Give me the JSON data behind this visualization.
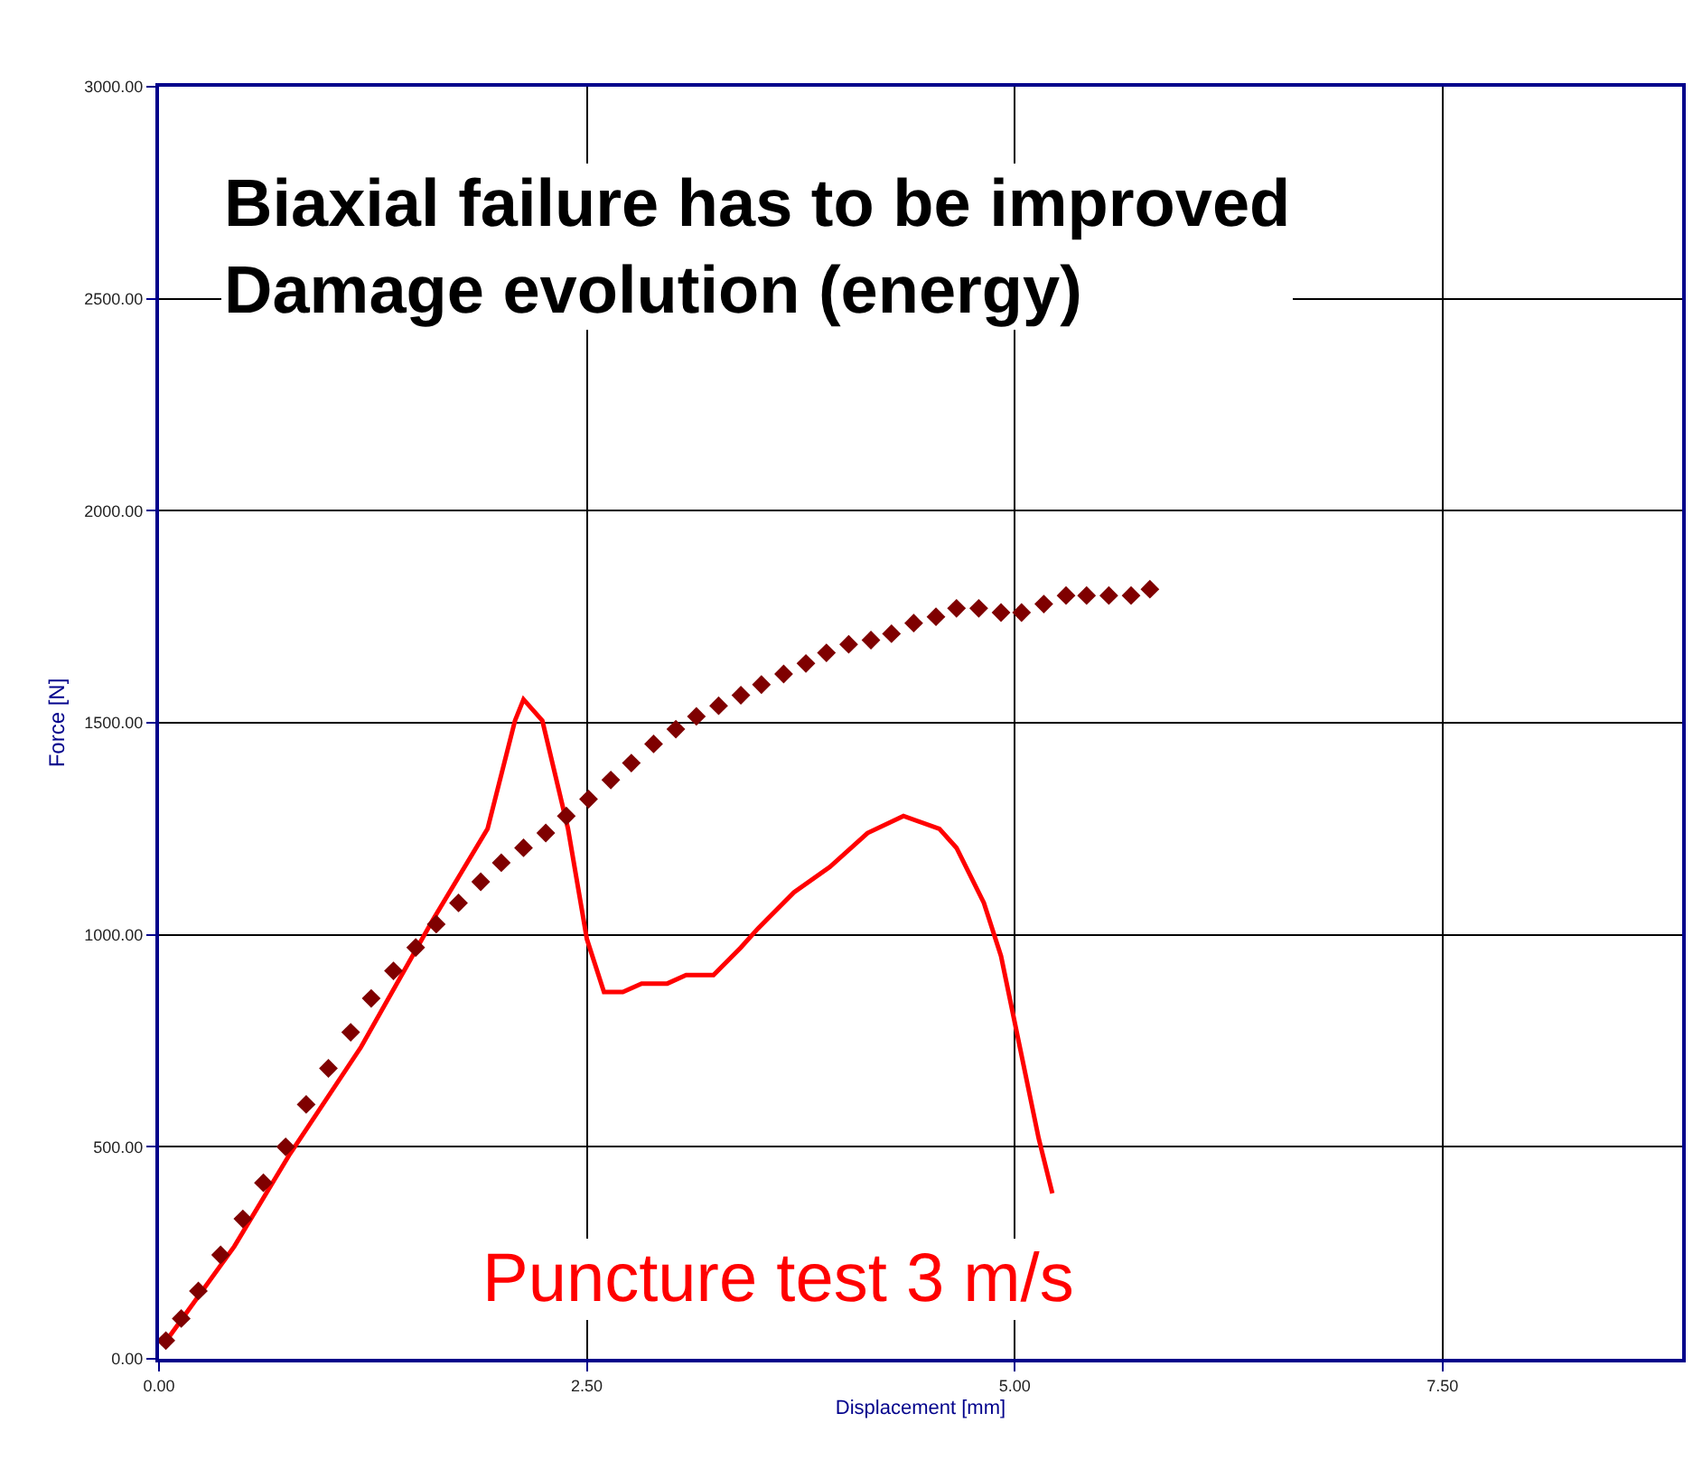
{
  "chart_data": {
    "type": "line",
    "xlabel": "Displacement [mm]",
    "ylabel": "Force [N]",
    "xlim": [
      0,
      8.9
    ],
    "ylim": [
      0,
      3000
    ],
    "xticks": [
      {
        "value": 0,
        "label": "0.00"
      },
      {
        "value": 2.5,
        "label": "2.50"
      },
      {
        "value": 5,
        "label": "5.00"
      },
      {
        "value": 7.5,
        "label": "7.50"
      }
    ],
    "yticks": [
      {
        "value": 0,
        "label": "0.00"
      },
      {
        "value": 500,
        "label": "500.00"
      },
      {
        "value": 1000,
        "label": "1000.00"
      },
      {
        "value": 1500,
        "label": "1500.00"
      },
      {
        "value": 2000,
        "label": "2000.00"
      },
      {
        "value": 2500,
        "label": "2500.00"
      },
      {
        "value": 3000,
        "label": "3000.00"
      }
    ],
    "grid": true,
    "annotations": [
      "Biaxial failure has to be improved\nDamage evolution (energy)",
      "Puncture test 3 m/s"
    ],
    "series": [
      {
        "marker": "none",
        "color": "#ff0000",
        "x": [
          0.02,
          0.44,
          0.76,
          1.18,
          1.6,
          1.92,
          2.08,
          2.13,
          2.24,
          2.39,
          2.5,
          2.6,
          2.71,
          2.82,
          2.97,
          3.08,
          3.24,
          3.4,
          3.5,
          3.71,
          3.92,
          4.14,
          4.35,
          4.56,
          4.66,
          4.82,
          4.92,
          5.03,
          5.14,
          5.22
        ],
        "values": [
          30,
          265,
          480,
          735,
          1035,
          1250,
          1505,
          1555,
          1505,
          1250,
          990,
          865,
          865,
          885,
          885,
          905,
          905,
          970,
          1015,
          1100,
          1160,
          1240,
          1280,
          1250,
          1205,
          1075,
          950,
          735,
          520,
          390
        ]
      },
      {
        "type": "scatter",
        "marker": "diamond",
        "color": "#7f0000",
        "x": [
          0.04,
          0.13,
          0.23,
          0.36,
          0.49,
          0.61,
          0.74,
          0.86,
          0.99,
          1.12,
          1.24,
          1.37,
          1.5,
          1.62,
          1.75,
          1.88,
          2.0,
          2.13,
          2.26,
          2.38,
          2.51,
          2.64,
          2.76,
          2.89,
          3.02,
          3.14,
          3.27,
          3.4,
          3.52,
          3.65,
          3.78,
          3.9,
          4.03,
          4.16,
          4.28,
          4.41,
          4.54,
          4.66,
          4.79,
          4.92,
          5.04,
          5.17,
          5.3,
          5.42,
          5.55,
          5.68,
          5.79
        ],
        "values": [
          43,
          95,
          160,
          245,
          330,
          415,
          500,
          600,
          685,
          770,
          850,
          915,
          970,
          1025,
          1075,
          1125,
          1170,
          1205,
          1240,
          1280,
          1320,
          1365,
          1405,
          1450,
          1485,
          1515,
          1540,
          1565,
          1590,
          1615,
          1640,
          1665,
          1685,
          1695,
          1710,
          1735,
          1750,
          1770,
          1770,
          1760,
          1760,
          1780,
          1800,
          1800,
          1800,
          1800,
          1815
        ]
      }
    ]
  }
}
